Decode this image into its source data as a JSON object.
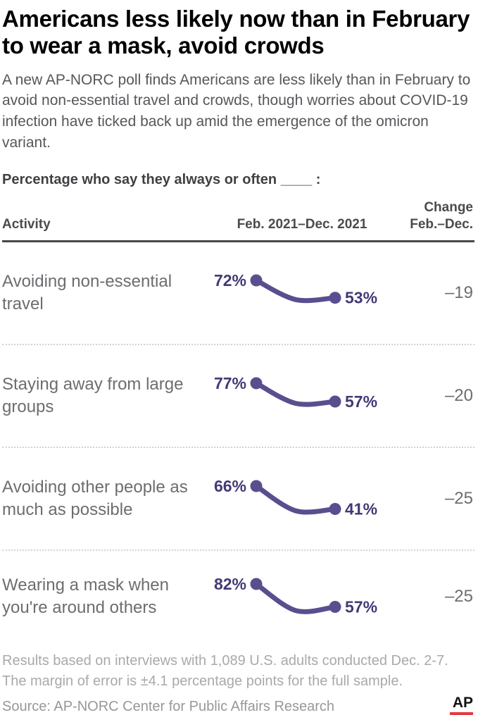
{
  "header": {
    "title": "Americans less likely now than in February to wear a mask, avoid crowds",
    "subtitle": "A new AP-NORC poll finds Americans are less likely than in February to avoid non-essential travel and crowds, though worries about COVID-19 infection have ticked back up amid the emergence of the omicron variant.",
    "lede": "Percentage who say they always or often ____ :"
  },
  "table": {
    "columns": {
      "activity": "Activity",
      "trend": "Feb. 2021–Dec. 2021",
      "change_line1": "Change",
      "change_line2": "Feb.–Dec."
    }
  },
  "chart_data": {
    "type": "line",
    "title": "Percentage who say they always or often ____ :",
    "x_axis_label": "Feb. 2021–Dec. 2021",
    "x_points": [
      "Feb. 2021",
      "mid-2021 (unlabeled, estimated)",
      "Dec. 2021"
    ],
    "legend_position": "none",
    "grid": false,
    "series": [
      {
        "label": "Avoiding non-essential travel",
        "values": [
          72,
          51,
          53
        ],
        "start_label": "72%",
        "end_label": "53%",
        "change": "–19"
      },
      {
        "label": "Staying away from large groups",
        "values": [
          77,
          55,
          57
        ],
        "start_label": "77%",
        "end_label": "57%",
        "change": "–20"
      },
      {
        "label": "Avoiding other people as much as possible",
        "values": [
          66,
          39,
          41
        ],
        "start_label": "66%",
        "end_label": "41%",
        "change": "–25"
      },
      {
        "label": "Wearing a mask when you're around others",
        "values": [
          82,
          53,
          57
        ],
        "start_label": "82%",
        "end_label": "57%",
        "change": "–25"
      }
    ]
  },
  "footer": {
    "note": "Results based on interviews with 1,089 U.S. adults conducted Dec. 2-7. The margin of error is ±4.1 percentage points for the full sample.",
    "source": "Source: AP-NORC Center for Public Affairs Research",
    "logo": "AP"
  },
  "colors": {
    "line_purple": "#5a4e8f",
    "value_text_purple": "#413a75",
    "ap_red": "#e13b3f"
  }
}
